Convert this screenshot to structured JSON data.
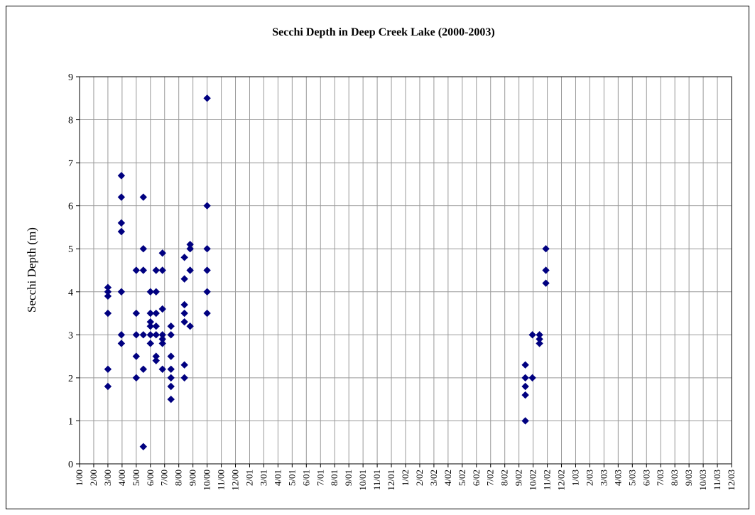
{
  "chart_data": {
    "type": "scatter",
    "title": "Secchi Depth in Deep Creek Lake (2000-2003)",
    "y_label": "Secchi Depth (m)",
    "color": "#000080",
    "grid": true,
    "xlim": [
      0,
      46
    ],
    "ylim": [
      0,
      9
    ],
    "yticks": [
      0,
      1,
      2,
      3,
      4,
      5,
      6,
      7,
      8,
      9
    ],
    "xticks": [
      {
        "value": 0,
        "label": "1/00"
      },
      {
        "value": 1,
        "label": "2/00"
      },
      {
        "value": 2,
        "label": "3/00"
      },
      {
        "value": 3,
        "label": "4/00"
      },
      {
        "value": 4,
        "label": "5/00"
      },
      {
        "value": 5,
        "label": "6/00"
      },
      {
        "value": 6,
        "label": "7/00"
      },
      {
        "value": 7,
        "label": "8/00"
      },
      {
        "value": 8,
        "label": "9/00"
      },
      {
        "value": 9,
        "label": "10/00"
      },
      {
        "value": 10,
        "label": "11/00"
      },
      {
        "value": 11,
        "label": "12/00"
      },
      {
        "value": 12,
        "label": "2/01"
      },
      {
        "value": 13,
        "label": "3/01"
      },
      {
        "value": 14,
        "label": "4/01"
      },
      {
        "value": 15,
        "label": "5/01"
      },
      {
        "value": 16,
        "label": "6/01"
      },
      {
        "value": 17,
        "label": "7/01"
      },
      {
        "value": 18,
        "label": "8/01"
      },
      {
        "value": 19,
        "label": "9/01"
      },
      {
        "value": 20,
        "label": "10/01"
      },
      {
        "value": 21,
        "label": "11/01"
      },
      {
        "value": 22,
        "label": "12/01"
      },
      {
        "value": 23,
        "label": "1/02"
      },
      {
        "value": 24,
        "label": "2/02"
      },
      {
        "value": 25,
        "label": "3/02"
      },
      {
        "value": 26,
        "label": "4/02"
      },
      {
        "value": 27,
        "label": "5/02"
      },
      {
        "value": 28,
        "label": "6/02"
      },
      {
        "value": 29,
        "label": "7/02"
      },
      {
        "value": 30,
        "label": "8/02"
      },
      {
        "value": 31,
        "label": "9/02"
      },
      {
        "value": 32,
        "label": "10/02"
      },
      {
        "value": 33,
        "label": "11/02"
      },
      {
        "value": 34,
        "label": "12/02"
      },
      {
        "value": 35,
        "label": "1/03"
      },
      {
        "value": 36,
        "label": "2/03"
      },
      {
        "value": 37,
        "label": "3/03"
      },
      {
        "value": 38,
        "label": "4/03"
      },
      {
        "value": 39,
        "label": "5/03"
      },
      {
        "value": 40,
        "label": "6/03"
      },
      {
        "value": 41,
        "label": "7/03"
      },
      {
        "value": 42,
        "label": "8/03"
      },
      {
        "value": 43,
        "label": "9/03"
      },
      {
        "value": 44,
        "label": "10/03"
      },
      {
        "value": 45,
        "label": "11/03"
      },
      {
        "value": 46,
        "label": "12/03"
      }
    ],
    "x": [
      2,
      2,
      2,
      2,
      2,
      2,
      2.95,
      2.95,
      2.95,
      2.95,
      2.95,
      2.95,
      2.95,
      4,
      4,
      4,
      4,
      4,
      4.5,
      4.5,
      4.5,
      4.5,
      4.5,
      4.5,
      5,
      5,
      5,
      5,
      5,
      5,
      5.4,
      5.4,
      5.4,
      5.4,
      5.4,
      5.4,
      5.4,
      5.85,
      5.85,
      5.85,
      5.85,
      5.85,
      5.85,
      5.85,
      6.45,
      6.45,
      6.45,
      6.45,
      6.45,
      6.45,
      6.45,
      7.4,
      7.4,
      7.4,
      7.4,
      7.4,
      7.4,
      7.4,
      7.8,
      7.8,
      7.8,
      7.8,
      9,
      9,
      9,
      9,
      9,
      9,
      31.45,
      31.45,
      31.45,
      31.45,
      31.45,
      31.95,
      31.95,
      32.45,
      32.45,
      32.45,
      32.9,
      32.9,
      32.9
    ],
    "values": [
      4.1,
      4.0,
      3.9,
      3.5,
      2.2,
      1.8,
      6.7,
      6.2,
      5.6,
      5.4,
      4.0,
      3.0,
      2.8,
      4.5,
      3.5,
      3.0,
      2.5,
      2.0,
      6.2,
      5.0,
      4.5,
      3.0,
      2.2,
      0.4,
      4.0,
      3.5,
      3.3,
      3.2,
      3.0,
      2.8,
      4.5,
      4.0,
      3.5,
      3.2,
      3.0,
      2.5,
      2.4,
      4.9,
      4.5,
      3.6,
      3.0,
      2.9,
      2.8,
      2.2,
      3.2,
      3.0,
      2.5,
      2.2,
      2.0,
      1.8,
      1.5,
      4.8,
      4.3,
      3.7,
      3.5,
      3.3,
      2.3,
      2.0,
      5.1,
      5.0,
      4.5,
      3.2,
      8.5,
      6.0,
      5.0,
      4.5,
      4.0,
      3.5,
      2.3,
      2.0,
      1.8,
      1.6,
      1.0,
      3.0,
      2.0,
      3.0,
      2.9,
      2.8,
      5.0,
      4.5,
      4.2
    ]
  }
}
